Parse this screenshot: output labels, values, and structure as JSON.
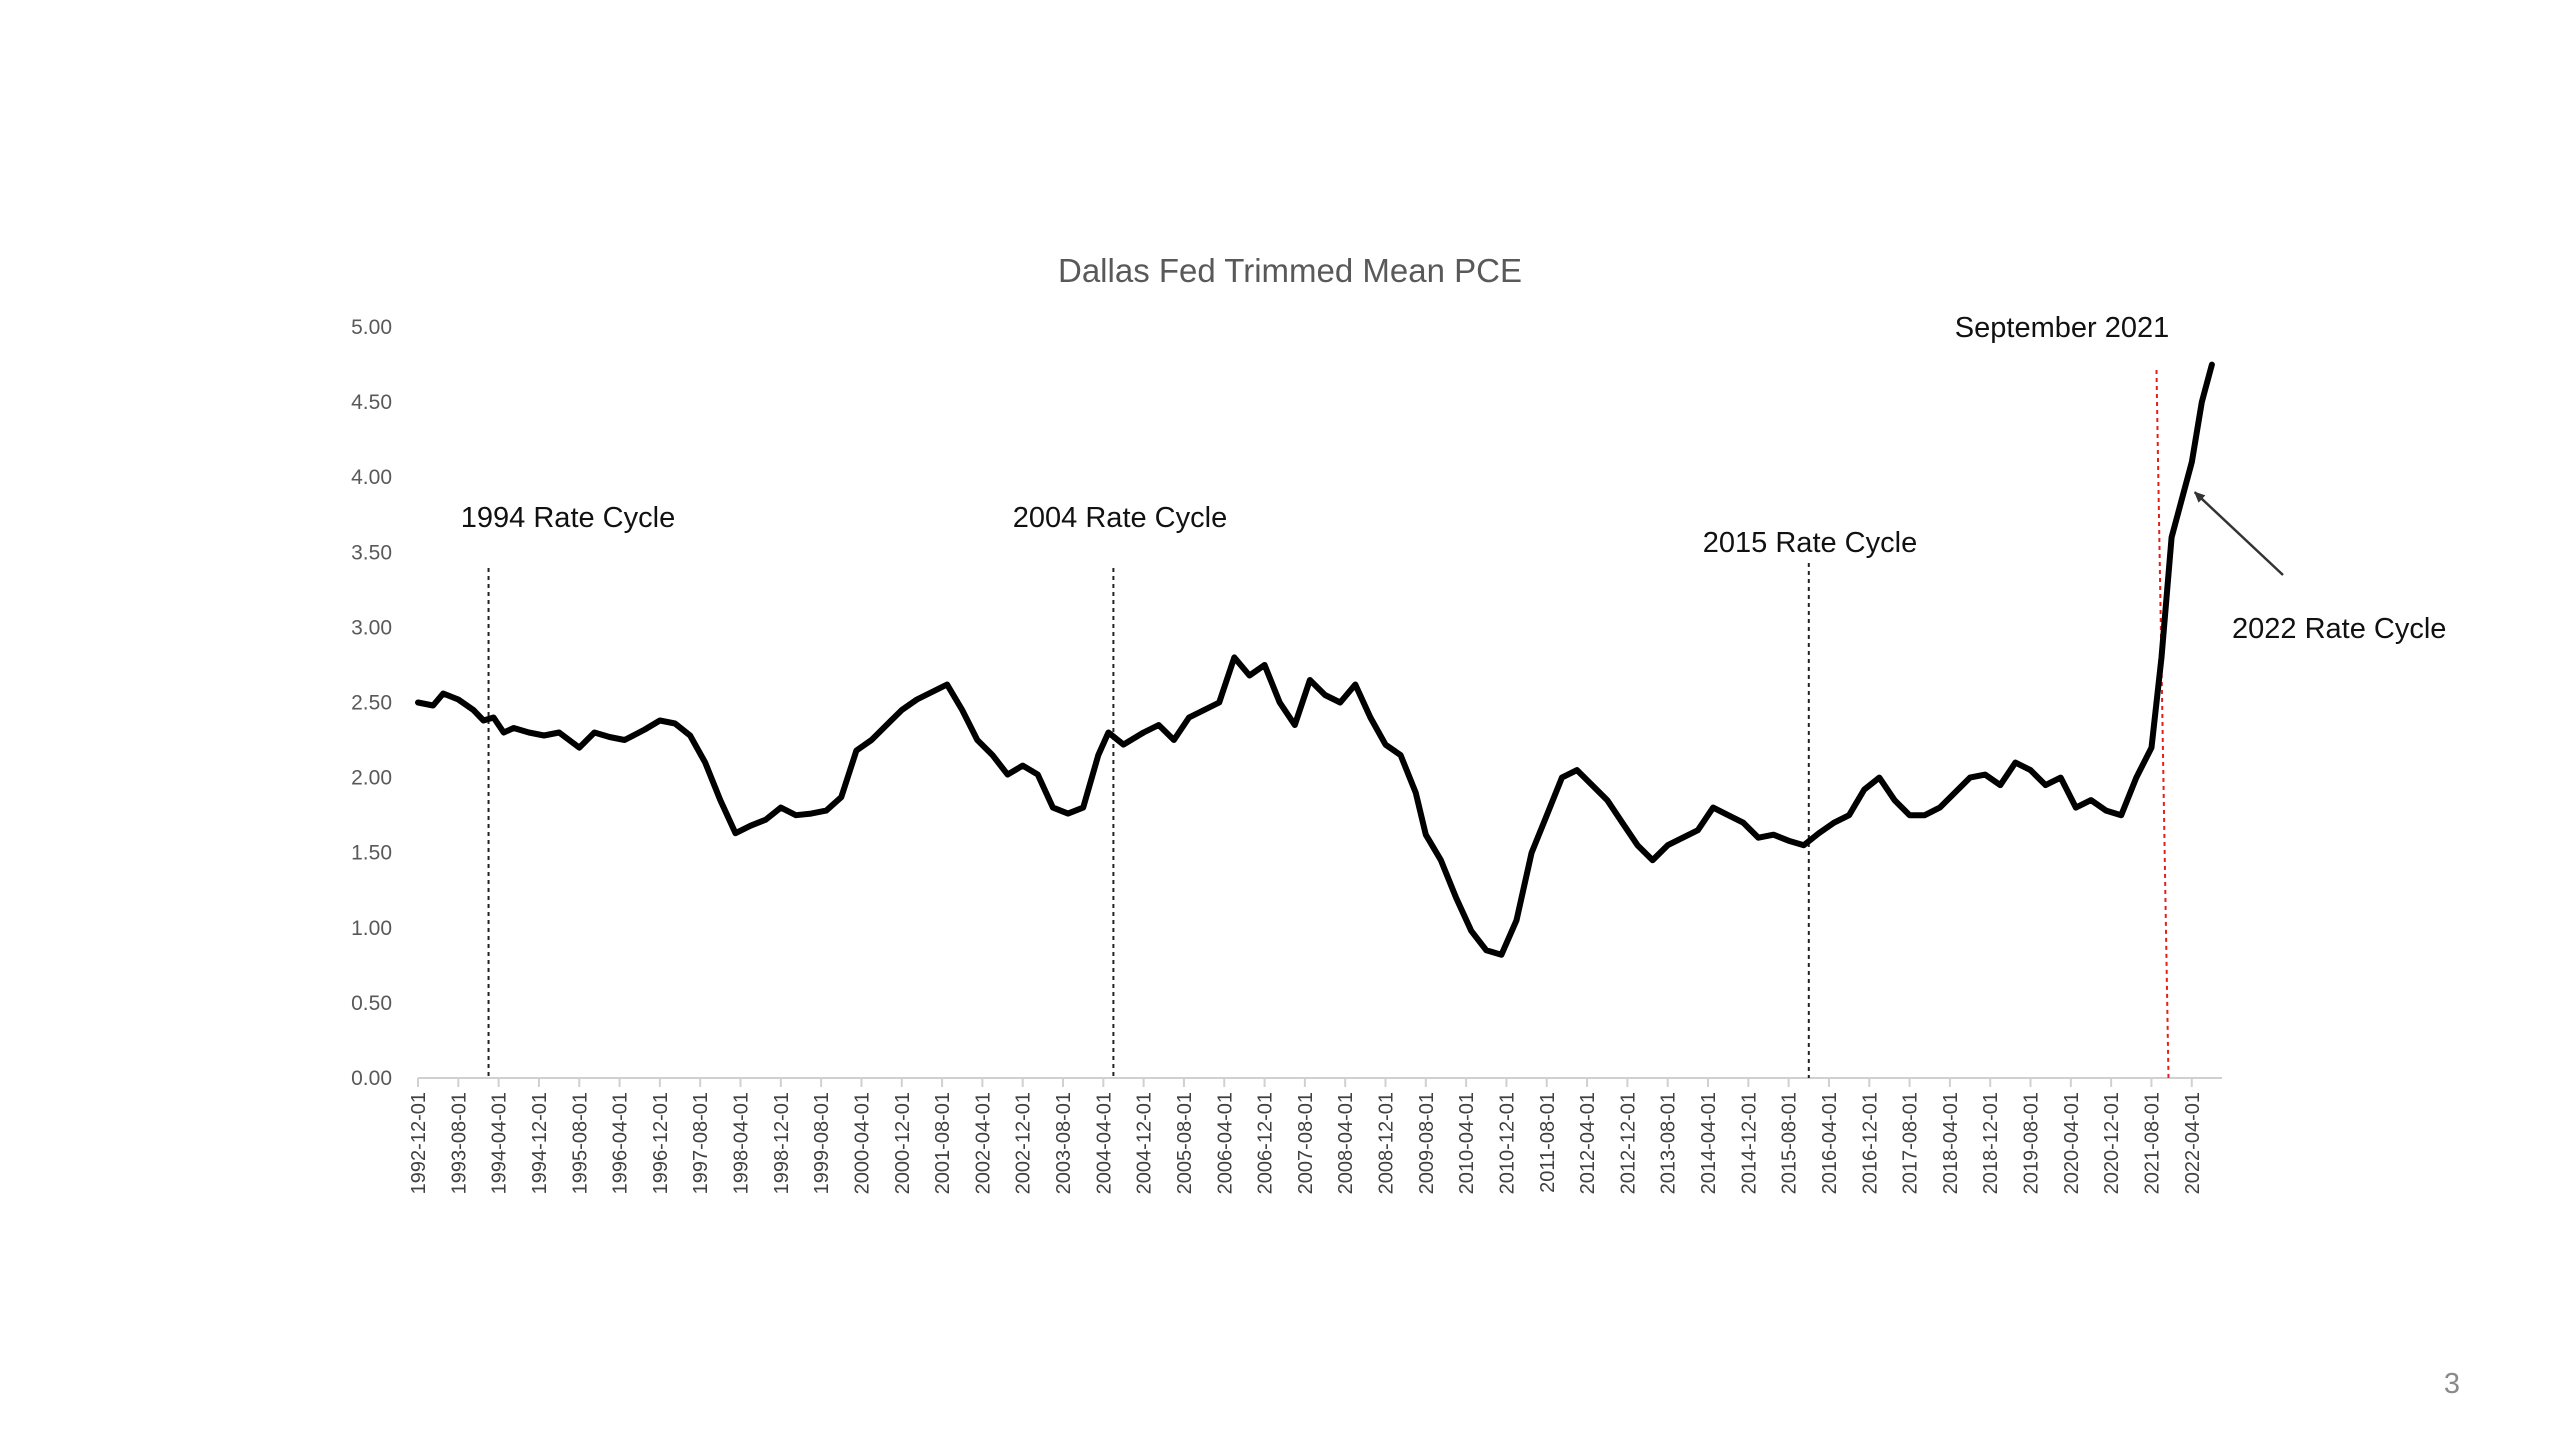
{
  "slide": {
    "page_number": "3"
  },
  "chart_data": {
    "type": "line",
    "title": "Dallas Fed Trimmed Mean PCE",
    "xlabel": "",
    "ylabel": "",
    "ylim": [
      0,
      5
    ],
    "y_ticks": [
      "0.00",
      "0.50",
      "1.00",
      "1.50",
      "2.00",
      "2.50",
      "3.00",
      "3.50",
      "4.00",
      "4.50",
      "5.00"
    ],
    "x_tick_labels": [
      "1992-12-01",
      "1993-08-01",
      "1994-04-01",
      "1994-12-01",
      "1995-08-01",
      "1996-04-01",
      "1996-12-01",
      "1997-08-01",
      "1998-04-01",
      "1998-12-01",
      "1999-08-01",
      "2000-04-01",
      "2000-12-01",
      "2001-08-01",
      "2002-04-01",
      "2002-12-01",
      "2003-08-01",
      "2004-04-01",
      "2004-12-01",
      "2005-08-01",
      "2006-04-01",
      "2006-12-01",
      "2007-08-01",
      "2008-04-01",
      "2008-12-01",
      "2009-08-01",
      "2010-04-01",
      "2010-12-01",
      "2011-08-01",
      "2012-04-01",
      "2012-12-01",
      "2013-08-01",
      "2014-04-01",
      "2014-12-01",
      "2015-08-01",
      "2016-04-01",
      "2016-12-01",
      "2017-08-01",
      "2018-04-01",
      "2018-12-01",
      "2019-08-01",
      "2020-04-01",
      "2020-12-01",
      "2021-08-01",
      "2022-04-01"
    ],
    "grid": false,
    "legend": "none",
    "line_color": "#000000",
    "series": [
      {
        "points": [
          [
            "1992-12",
            2.5
          ],
          [
            "1993-03",
            2.48
          ],
          [
            "1993-05",
            2.56
          ],
          [
            "1993-08",
            2.52
          ],
          [
            "1993-11",
            2.45
          ],
          [
            "1994-01",
            2.38
          ],
          [
            "1994-03",
            2.4
          ],
          [
            "1994-05",
            2.3
          ],
          [
            "1994-07",
            2.33
          ],
          [
            "1994-10",
            2.3
          ],
          [
            "1995-01",
            2.28
          ],
          [
            "1995-04",
            2.3
          ],
          [
            "1995-08",
            2.2
          ],
          [
            "1995-11",
            2.3
          ],
          [
            "1996-02",
            2.27
          ],
          [
            "1996-05",
            2.25
          ],
          [
            "1996-09",
            2.32
          ],
          [
            "1996-12",
            2.38
          ],
          [
            "1997-03",
            2.36
          ],
          [
            "1997-06",
            2.28
          ],
          [
            "1997-09",
            2.1
          ],
          [
            "1997-12",
            1.85
          ],
          [
            "1998-03",
            1.63
          ],
          [
            "1998-06",
            1.68
          ],
          [
            "1998-09",
            1.72
          ],
          [
            "1998-12",
            1.8
          ],
          [
            "1999-03",
            1.75
          ],
          [
            "1999-06",
            1.76
          ],
          [
            "1999-09",
            1.78
          ],
          [
            "1999-12",
            1.87
          ],
          [
            "2000-03",
            2.18
          ],
          [
            "2000-06",
            2.25
          ],
          [
            "2000-09",
            2.35
          ],
          [
            "2000-12",
            2.45
          ],
          [
            "2001-03",
            2.52
          ],
          [
            "2001-06",
            2.57
          ],
          [
            "2001-09",
            2.62
          ],
          [
            "2001-12",
            2.45
          ],
          [
            "2002-03",
            2.25
          ],
          [
            "2002-06",
            2.15
          ],
          [
            "2002-09",
            2.02
          ],
          [
            "2002-12",
            2.08
          ],
          [
            "2003-03",
            2.02
          ],
          [
            "2003-06",
            1.8
          ],
          [
            "2003-09",
            1.76
          ],
          [
            "2003-12",
            1.8
          ],
          [
            "2004-03",
            2.15
          ],
          [
            "2004-05",
            2.3
          ],
          [
            "2004-08",
            2.22
          ],
          [
            "2004-12",
            2.3
          ],
          [
            "2005-03",
            2.35
          ],
          [
            "2005-06",
            2.25
          ],
          [
            "2005-09",
            2.4
          ],
          [
            "2005-12",
            2.45
          ],
          [
            "2006-03",
            2.5
          ],
          [
            "2006-06",
            2.8
          ],
          [
            "2006-09",
            2.68
          ],
          [
            "2006-12",
            2.75
          ],
          [
            "2007-03",
            2.5
          ],
          [
            "2007-06",
            2.35
          ],
          [
            "2007-09",
            2.65
          ],
          [
            "2007-12",
            2.55
          ],
          [
            "2008-03",
            2.5
          ],
          [
            "2008-06",
            2.62
          ],
          [
            "2008-09",
            2.4
          ],
          [
            "2008-12",
            2.22
          ],
          [
            "2009-03",
            2.15
          ],
          [
            "2009-06",
            1.9
          ],
          [
            "2009-08",
            1.62
          ],
          [
            "2009-11",
            1.45
          ],
          [
            "2010-02",
            1.2
          ],
          [
            "2010-05",
            0.98
          ],
          [
            "2010-08",
            0.85
          ],
          [
            "2010-11",
            0.82
          ],
          [
            "2011-02",
            1.05
          ],
          [
            "2011-05",
            1.5
          ],
          [
            "2011-08",
            1.75
          ],
          [
            "2011-11",
            2.0
          ],
          [
            "2012-02",
            2.05
          ],
          [
            "2012-05",
            1.95
          ],
          [
            "2012-08",
            1.85
          ],
          [
            "2012-11",
            1.7
          ],
          [
            "2013-02",
            1.55
          ],
          [
            "2013-05",
            1.45
          ],
          [
            "2013-08",
            1.55
          ],
          [
            "2013-11",
            1.6
          ],
          [
            "2014-02",
            1.65
          ],
          [
            "2014-05",
            1.8
          ],
          [
            "2014-08",
            1.75
          ],
          [
            "2014-11",
            1.7
          ],
          [
            "2015-02",
            1.6
          ],
          [
            "2015-05",
            1.62
          ],
          [
            "2015-08",
            1.58
          ],
          [
            "2015-11",
            1.55
          ],
          [
            "2016-02",
            1.63
          ],
          [
            "2016-05",
            1.7
          ],
          [
            "2016-08",
            1.75
          ],
          [
            "2016-11",
            1.92
          ],
          [
            "2017-02",
            2.0
          ],
          [
            "2017-05",
            1.85
          ],
          [
            "2017-08",
            1.75
          ],
          [
            "2017-11",
            1.75
          ],
          [
            "2018-02",
            1.8
          ],
          [
            "2018-05",
            1.9
          ],
          [
            "2018-08",
            2.0
          ],
          [
            "2018-11",
            2.02
          ],
          [
            "2019-02",
            1.95
          ],
          [
            "2019-05",
            2.1
          ],
          [
            "2019-08",
            2.05
          ],
          [
            "2019-11",
            1.95
          ],
          [
            "2020-02",
            2.0
          ],
          [
            "2020-05",
            1.8
          ],
          [
            "2020-08",
            1.85
          ],
          [
            "2020-11",
            1.78
          ],
          [
            "2021-02",
            1.75
          ],
          [
            "2021-05",
            2.0
          ],
          [
            "2021-08",
            2.2
          ],
          [
            "2021-10",
            2.8
          ],
          [
            "2021-12",
            3.6
          ],
          [
            "2022-02",
            3.85
          ],
          [
            "2022-04",
            4.1
          ],
          [
            "2022-06",
            4.5
          ],
          [
            "2022-08",
            4.75
          ]
        ]
      }
    ],
    "markers": [
      {
        "date": "1994-02",
        "label": "1994 Rate Cycle",
        "color": "#222222",
        "style": "dotted"
      },
      {
        "date": "2004-06",
        "label": "2004  Rate Cycle",
        "color": "#222222",
        "style": "dotted"
      },
      {
        "date": "2015-12",
        "label": "2015 Rate Cycle",
        "color": "#222222",
        "style": "dotted"
      },
      {
        "date": "2021-09",
        "label": "September 2021",
        "color": "#e02020",
        "style": "dotted"
      }
    ],
    "annotations": [
      {
        "text": "2022 Rate Cycle",
        "arrow_to": {
          "x": "2022-03",
          "y": 3.9
        }
      }
    ]
  }
}
